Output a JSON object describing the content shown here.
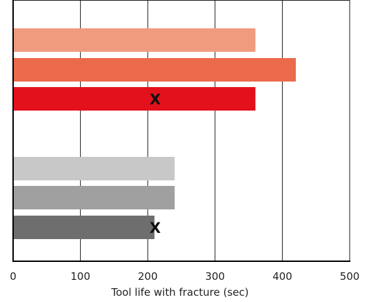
{
  "chart_data": {
    "type": "bar",
    "orientation": "horizontal",
    "title": "",
    "xlabel": "Tool life with fracture (sec)",
    "ylabel": "",
    "xlim": [
      0,
      500
    ],
    "xticks": [
      0,
      100,
      200,
      300,
      400,
      500
    ],
    "grid": true,
    "legend": "none",
    "bars": [
      {
        "group": 1,
        "value": 360,
        "color": "#F19B7E",
        "marker": ""
      },
      {
        "group": 1,
        "value": 420,
        "color": "#EC6A4C",
        "marker": ""
      },
      {
        "group": 1,
        "value": 360,
        "color": "#E3111C",
        "marker": "X"
      },
      {
        "group": 2,
        "value": 240,
        "color": "#C8C8C8",
        "marker": ""
      },
      {
        "group": 2,
        "value": 240,
        "color": "#A0A0A0",
        "marker": ""
      },
      {
        "group": 2,
        "value": 210,
        "color": "#6E6E6E",
        "marker": "X"
      }
    ],
    "marker_values": [
      210,
      210
    ]
  }
}
